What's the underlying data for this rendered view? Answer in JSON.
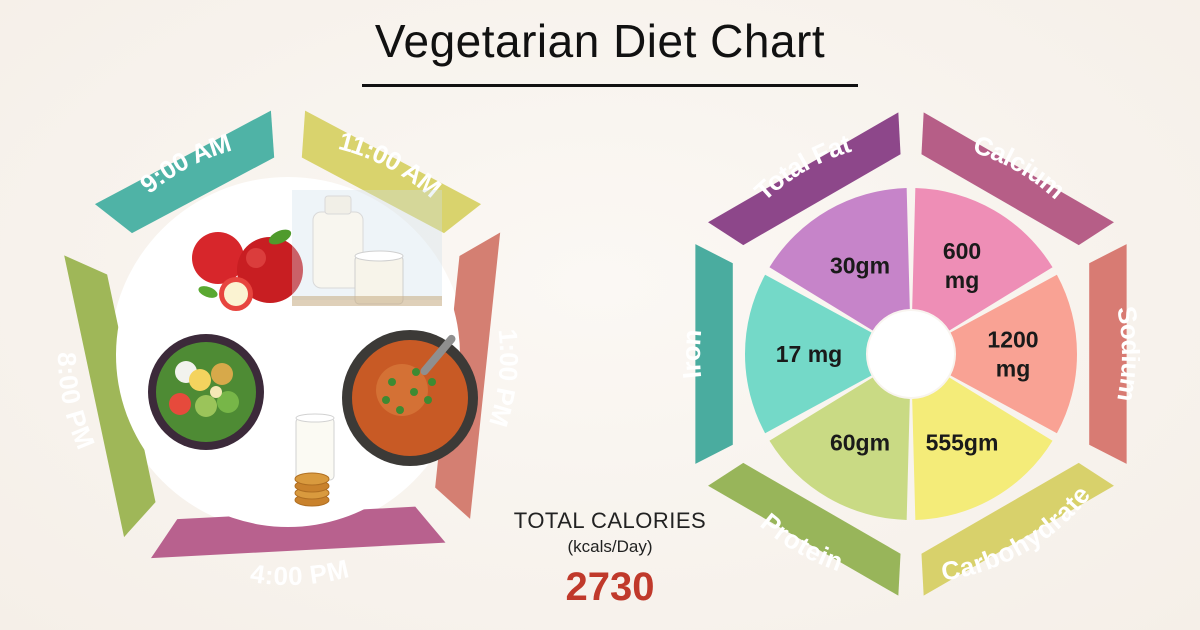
{
  "title": "Vegetarian Diet Chart",
  "meals": [
    {
      "time": "9:00 AM",
      "color": "#4fb3a6",
      "food_icon": "apples-icon"
    },
    {
      "time": "11:00 AM",
      "color": "#d9d36d",
      "food_icon": "milk-icon"
    },
    {
      "time": "1:00 PM",
      "color": "#d47f72",
      "food_icon": "soup-icon"
    },
    {
      "time": "4:00 PM",
      "color": "#b8618e",
      "food_icon": "milk-cookies-icon"
    },
    {
      "time": "8:00 PM",
      "color": "#9fb758",
      "food_icon": "salad-bowl-icon"
    }
  ],
  "nutrients": [
    {
      "name": "Calcium",
      "value_lines": [
        "600",
        "mg"
      ],
      "ring_color": "#b65e87",
      "wedge_color": "#ee8eb6"
    },
    {
      "name": "Sodium",
      "value_lines": [
        "1200",
        "mg"
      ],
      "ring_color": "#d87b73",
      "wedge_color": "#f9a294"
    },
    {
      "name": "Carbohydrate",
      "value_lines": [
        "555gm"
      ],
      "ring_color": "#d8d16b",
      "wedge_color": "#f4ec79"
    },
    {
      "name": "Protein",
      "value_lines": [
        "60gm"
      ],
      "ring_color": "#98b55a",
      "wedge_color": "#c9da84"
    },
    {
      "name": "Iron",
      "value_lines": [
        "17 mg"
      ],
      "ring_color": "#4aac9f",
      "wedge_color": "#74d9c8"
    },
    {
      "name": "Total Fat",
      "value_lines": [
        "30gm"
      ],
      "ring_color": "#8d478a",
      "wedge_color": "#c684c9"
    }
  ],
  "calories": {
    "label": "TOTAL CALORIES",
    "unit": "(kcals/Day)",
    "value": "2730"
  }
}
